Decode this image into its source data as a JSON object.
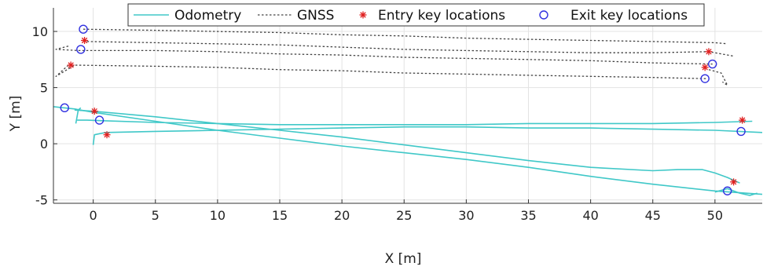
{
  "chart_data": {
    "type": "line",
    "xlabel": "X [m]",
    "ylabel": "Y [m]",
    "xlim": [
      -3.2,
      53.8
    ],
    "ylim": [
      -5.3,
      12.1
    ],
    "xticks": [
      0,
      5,
      10,
      15,
      20,
      25,
      30,
      35,
      40,
      45,
      50
    ],
    "yticks": [
      -5,
      0,
      5,
      10
    ],
    "grid": true,
    "legend_position": "top",
    "legend": [
      "Odometry",
      "GNSS",
      "Entry key locations",
      "Exit key locations"
    ],
    "series": [
      {
        "name": "Odometry",
        "kind": "line",
        "color": "#40c8c8",
        "dash": "solid",
        "segments": [
          {
            "x": [
              -3.2,
              -1.5,
              0.0,
              5.0,
              10.0,
              15.0,
              20.0,
              25.0,
              30.0,
              35.0,
              40.0,
              45.0,
              50.0,
              53.8
            ],
            "y": [
              3.3,
              3.1,
              2.8,
              2.0,
              1.2,
              0.5,
              -0.2,
              -0.8,
              -1.4,
              -2.1,
              -2.9,
              -3.6,
              -4.2,
              -4.5
            ]
          },
          {
            "x": [
              -1.5,
              0.0,
              5.0,
              10.0,
              15.0,
              20.0,
              25.0,
              30.0,
              35.0,
              40.0,
              45.0,
              47.0,
              49.0,
              50.0,
              51.0,
              52.0
            ],
            "y": [
              3.0,
              2.9,
              2.4,
              1.8,
              1.2,
              0.6,
              -0.1,
              -0.8,
              -1.5,
              -2.1,
              -2.4,
              -2.3,
              -2.3,
              -2.6,
              -3.0,
              -3.5
            ]
          },
          {
            "x": [
              -1.3,
              -0.5,
              5.0,
              10.0,
              15.0,
              20.0,
              25.0,
              30.0,
              35.0,
              40.0,
              45.0,
              50.0,
              53.0
            ],
            "y": [
              2.1,
              2.1,
              1.9,
              1.8,
              1.7,
              1.7,
              1.7,
              1.7,
              1.8,
              1.8,
              1.8,
              1.9,
              2.0
            ]
          },
          {
            "x": [
              0.0,
              0.1,
              1.0,
              5.0,
              10.0,
              15.0,
              20.0,
              25.0,
              30.0,
              35.0,
              40.0,
              45.0,
              50.0,
              53.8
            ],
            "y": [
              -0.1,
              0.8,
              1.0,
              1.1,
              1.2,
              1.3,
              1.4,
              1.5,
              1.5,
              1.4,
              1.4,
              1.3,
              1.2,
              1.0
            ]
          },
          {
            "x": [
              50.0,
              51.0,
              52.0,
              52.8,
              53.4
            ],
            "y": [
              -4.3,
              -4.0,
              -4.4,
              -4.6,
              -4.4
            ]
          },
          {
            "x": [
              -1.4,
              -1.2,
              -1.0
            ],
            "y": [
              1.8,
              3.0,
              3.2
            ]
          }
        ]
      },
      {
        "name": "GNSS",
        "kind": "line",
        "color": "#444444",
        "dash": "dotted",
        "segments": [
          {
            "x": [
              -0.8,
              5.0,
              10.0,
              15.0,
              20.0,
              25.0,
              30.0,
              35.0,
              40.0,
              45.0,
              50.0,
              51.0
            ],
            "y": [
              10.2,
              10.1,
              10.0,
              9.9,
              9.7,
              9.6,
              9.4,
              9.3,
              9.2,
              9.1,
              9.0,
              8.9
            ]
          },
          {
            "x": [
              -0.5,
              5.0,
              10.0,
              15.0,
              20.0,
              25.0,
              30.0,
              35.0,
              40.0,
              45.0,
              49.5,
              51.5
            ],
            "y": [
              9.1,
              9.0,
              8.9,
              8.8,
              8.6,
              8.4,
              8.3,
              8.2,
              8.1,
              8.1,
              8.2,
              7.8
            ]
          },
          {
            "x": [
              -2.0,
              -3.0,
              -1.2,
              5.0,
              10.0,
              15.0,
              20.0,
              25.0,
              30.0,
              35.0,
              40.0,
              45.0,
              49.8
            ],
            "y": [
              8.7,
              8.4,
              8.3,
              8.3,
              8.2,
              8.0,
              7.9,
              7.7,
              7.6,
              7.5,
              7.4,
              7.2,
              7.1
            ]
          },
          {
            "x": [
              -2.0,
              -3.0,
              -1.5,
              5.0,
              10.0,
              15.0,
              20.0,
              25.0,
              30.0,
              35.0,
              40.0,
              45.0,
              49.3
            ],
            "y": [
              7.0,
              6.0,
              7.0,
              6.9,
              6.8,
              6.6,
              6.5,
              6.3,
              6.2,
              6.1,
              6.0,
              5.9,
              5.8
            ]
          },
          {
            "x": [
              49.5,
              50.5,
              51.0,
              50.6
            ],
            "y": [
              6.6,
              6.3,
              5.2,
              5.5
            ]
          }
        ]
      },
      {
        "name": "Entry key locations",
        "kind": "marker",
        "marker": "asterisk",
        "color": "#e02020",
        "x": [
          -0.7,
          -1.8,
          0.1,
          1.1,
          49.5,
          49.2,
          52.2,
          51.5
        ],
        "y": [
          9.2,
          7.0,
          2.9,
          0.8,
          8.2,
          6.8,
          2.1,
          -3.4
        ]
      },
      {
        "name": "Exit key locations",
        "kind": "marker",
        "marker": "circle",
        "color": "#3030e0",
        "x": [
          -0.8,
          -1.0,
          -2.3,
          0.5,
          49.8,
          49.2,
          52.1,
          51.0
        ],
        "y": [
          10.2,
          8.4,
          3.2,
          2.1,
          7.1,
          5.8,
          1.1,
          -4.2
        ]
      }
    ]
  }
}
